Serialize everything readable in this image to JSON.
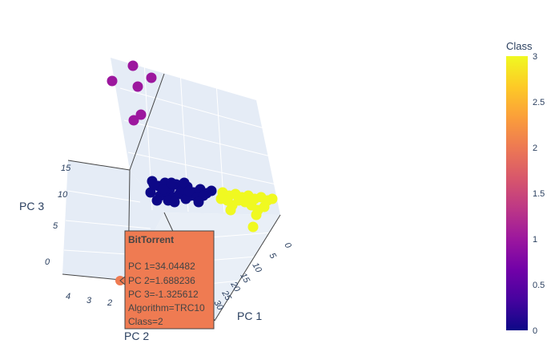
{
  "chart_data": {
    "type": "scatter3d",
    "axes": {
      "x": {
        "title": "PC 1",
        "ticks": [
          "0",
          "5",
          "10",
          "15",
          "20",
          "25",
          "30"
        ]
      },
      "y": {
        "title": "PC 2",
        "ticks": [
          "4",
          "3",
          "2"
        ]
      },
      "z": {
        "title": "PC 3",
        "ticks": [
          "0",
          "5",
          "10",
          "15"
        ]
      }
    },
    "colorbar": {
      "title": "Class",
      "ticks": [
        "3",
        "2.5",
        "2",
        "1.5",
        "1",
        "0.5",
        "0"
      ],
      "range": [
        0,
        3
      ],
      "colors": [
        "#0d0887",
        "#46039f",
        "#7201a8",
        "#9c179e",
        "#bd3786",
        "#d8576b",
        "#ed7953",
        "#fb9f3a",
        "#fdca26",
        "#f0f921"
      ]
    },
    "class_colors": {
      "0": "#0d0887",
      "1": "#9c179e",
      "2": "#ef7b52",
      "3": "#f0f921"
    },
    "hover": {
      "title": "BitTorrent",
      "lines": [
        "PC 1=34.04482",
        "PC 2=1.688236",
        "PC 3=-1.325612",
        "Algorithm=TRC10",
        "Class=2"
      ]
    }
  }
}
